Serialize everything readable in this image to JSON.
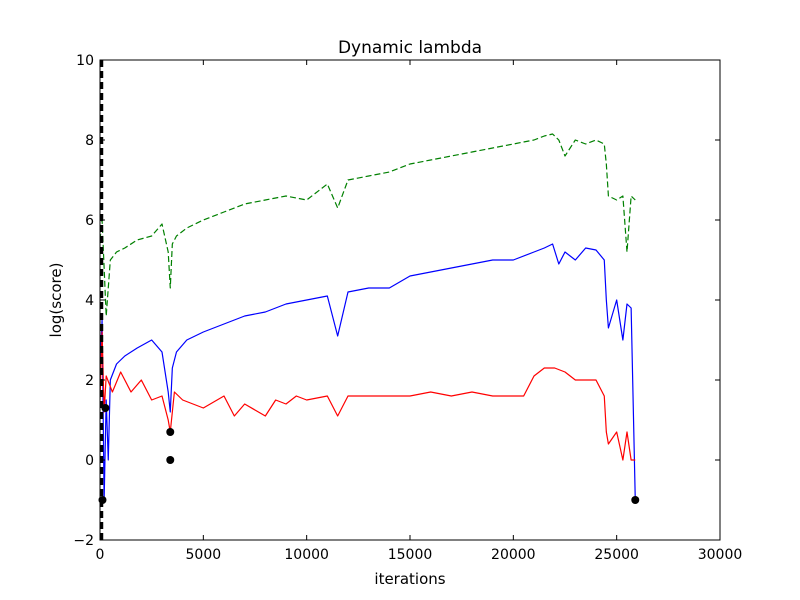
{
  "chart_data": {
    "type": "line",
    "title": "Dynamic lambda",
    "xlabel": "iterations",
    "ylabel": "log(score)",
    "xlim": [
      0,
      30000
    ],
    "ylim": [
      -2,
      10
    ],
    "xticks": [
      0,
      5000,
      10000,
      15000,
      20000,
      25000,
      30000
    ],
    "xtick_labels": [
      "0",
      "5000",
      "10000",
      "15000",
      "20000",
      "25000",
      "30000"
    ],
    "yticks": [
      -2,
      0,
      2,
      4,
      6,
      8,
      10
    ],
    "ytick_labels": [
      "−2",
      "0",
      "2",
      "4",
      "6",
      "8",
      "10"
    ],
    "grid": false,
    "legend": "none",
    "series": [
      {
        "color": "#008000",
        "style": "dashed",
        "x": [
          0,
          100,
          200,
          300,
          500,
          800,
          1200,
          1800,
          2500,
          3000,
          3300,
          3400,
          3500,
          3700,
          4200,
          5000,
          6000,
          7000,
          8000,
          9000,
          10000,
          11000,
          11500,
          12000,
          13000,
          14000,
          15000,
          16000,
          17000,
          18000,
          19000,
          20000,
          21000,
          21500,
          21900,
          22200,
          22500,
          23000,
          23500,
          24000,
          24400,
          24500,
          24600,
          25000,
          25300,
          25500,
          25700,
          25900
        ],
        "y": [
          5.5,
          6.0,
          4.8,
          3.6,
          5.0,
          5.2,
          5.3,
          5.5,
          5.6,
          5.9,
          5.2,
          4.3,
          5.4,
          5.6,
          5.8,
          6.0,
          6.2,
          6.4,
          6.5,
          6.6,
          6.5,
          6.9,
          6.3,
          7.0,
          7.1,
          7.2,
          7.4,
          7.5,
          7.6,
          7.7,
          7.8,
          7.9,
          8.0,
          8.1,
          8.15,
          8.0,
          7.6,
          8.0,
          7.9,
          8.0,
          7.9,
          7.4,
          6.6,
          6.5,
          6.6,
          5.2,
          6.6,
          6.5
        ]
      },
      {
        "color": "#0000ff",
        "style": "solid",
        "x": [
          0,
          100,
          200,
          300,
          400,
          500,
          800,
          1200,
          1800,
          2500,
          3000,
          3300,
          3400,
          3500,
          3700,
          4200,
          5000,
          6000,
          7000,
          8000,
          9000,
          10000,
          11000,
          11500,
          12000,
          13000,
          14000,
          15000,
          16000,
          17000,
          18000,
          19000,
          20000,
          21000,
          21500,
          21900,
          22200,
          22500,
          23000,
          23500,
          24000,
          24400,
          24500,
          24600,
          25000,
          25300,
          25500,
          25700,
          25900
        ],
        "y": [
          2.3,
          3.5,
          -1.0,
          1.5,
          0.0,
          2.0,
          2.4,
          2.6,
          2.8,
          3.0,
          2.7,
          1.7,
          1.2,
          2.3,
          2.7,
          3.0,
          3.2,
          3.4,
          3.6,
          3.7,
          3.9,
          4.0,
          4.1,
          3.1,
          4.2,
          4.3,
          4.3,
          4.6,
          4.7,
          4.8,
          4.9,
          5.0,
          5.0,
          5.2,
          5.3,
          5.4,
          4.9,
          5.2,
          5.0,
          5.3,
          5.25,
          5.0,
          4.0,
          3.3,
          4.0,
          3.0,
          3.9,
          3.8,
          -1.0
        ]
      },
      {
        "color": "#ff0000",
        "style": "solid",
        "x": [
          0,
          100,
          200,
          300,
          600,
          1000,
          1500,
          2000,
          2500,
          3000,
          3300,
          3400,
          3600,
          4000,
          5000,
          6000,
          6500,
          7000,
          8000,
          8500,
          9000,
          9500,
          10000,
          11000,
          11500,
          12000,
          13000,
          14000,
          15000,
          16000,
          17000,
          18000,
          19000,
          20000,
          20500,
          21000,
          21500,
          22000,
          22500,
          23000,
          24000,
          24400,
          24500,
          24600,
          25000,
          25300,
          25500,
          25700,
          25900
        ],
        "y": [
          1.5,
          3.2,
          1.2,
          2.1,
          1.7,
          2.2,
          1.7,
          2.0,
          1.5,
          1.6,
          1.0,
          0.7,
          1.7,
          1.5,
          1.3,
          1.6,
          1.1,
          1.4,
          1.1,
          1.5,
          1.4,
          1.6,
          1.5,
          1.6,
          1.1,
          1.6,
          1.6,
          1.6,
          1.6,
          1.7,
          1.6,
          1.7,
          1.6,
          1.6,
          1.6,
          2.1,
          2.3,
          2.3,
          2.2,
          2.0,
          2.0,
          1.6,
          0.7,
          0.4,
          0.7,
          0.0,
          0.7,
          0.0,
          0.0
        ]
      }
    ],
    "markers": {
      "color": "#000000",
      "points": [
        [
          120,
          -1.0
        ],
        [
          260,
          1.3
        ],
        [
          3400,
          0.7
        ],
        [
          3400,
          0.0
        ],
        [
          25900,
          -1.0
        ]
      ]
    },
    "vline": {
      "x": 60,
      "color": "#000000",
      "style": "dashed"
    }
  }
}
